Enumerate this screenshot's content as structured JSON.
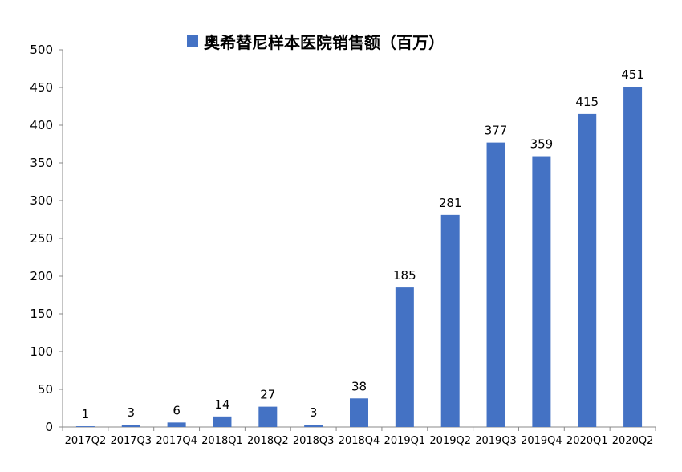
{
  "chart_data": {
    "type": "bar",
    "categories": [
      "2017Q2",
      "2017Q3",
      "2017Q4",
      "2018Q1",
      "2018Q2",
      "2018Q3",
      "2018Q4",
      "2019Q1",
      "2019Q2",
      "2019Q3",
      "2019Q4",
      "2020Q1",
      "2020Q2"
    ],
    "series": [
      {
        "name": "奥希替尼样本医院销售额（百万）",
        "values": [
          1,
          3,
          6,
          14,
          27,
          3,
          38,
          185,
          281,
          377,
          359,
          415,
          451
        ],
        "color": "#4472C4"
      }
    ],
    "ylim": [
      0,
      500
    ],
    "yticks": [
      0,
      50,
      100,
      150,
      200,
      250,
      300,
      350,
      400,
      450,
      500
    ],
    "legend_position": "top",
    "grid": false,
    "data_labels": true
  }
}
